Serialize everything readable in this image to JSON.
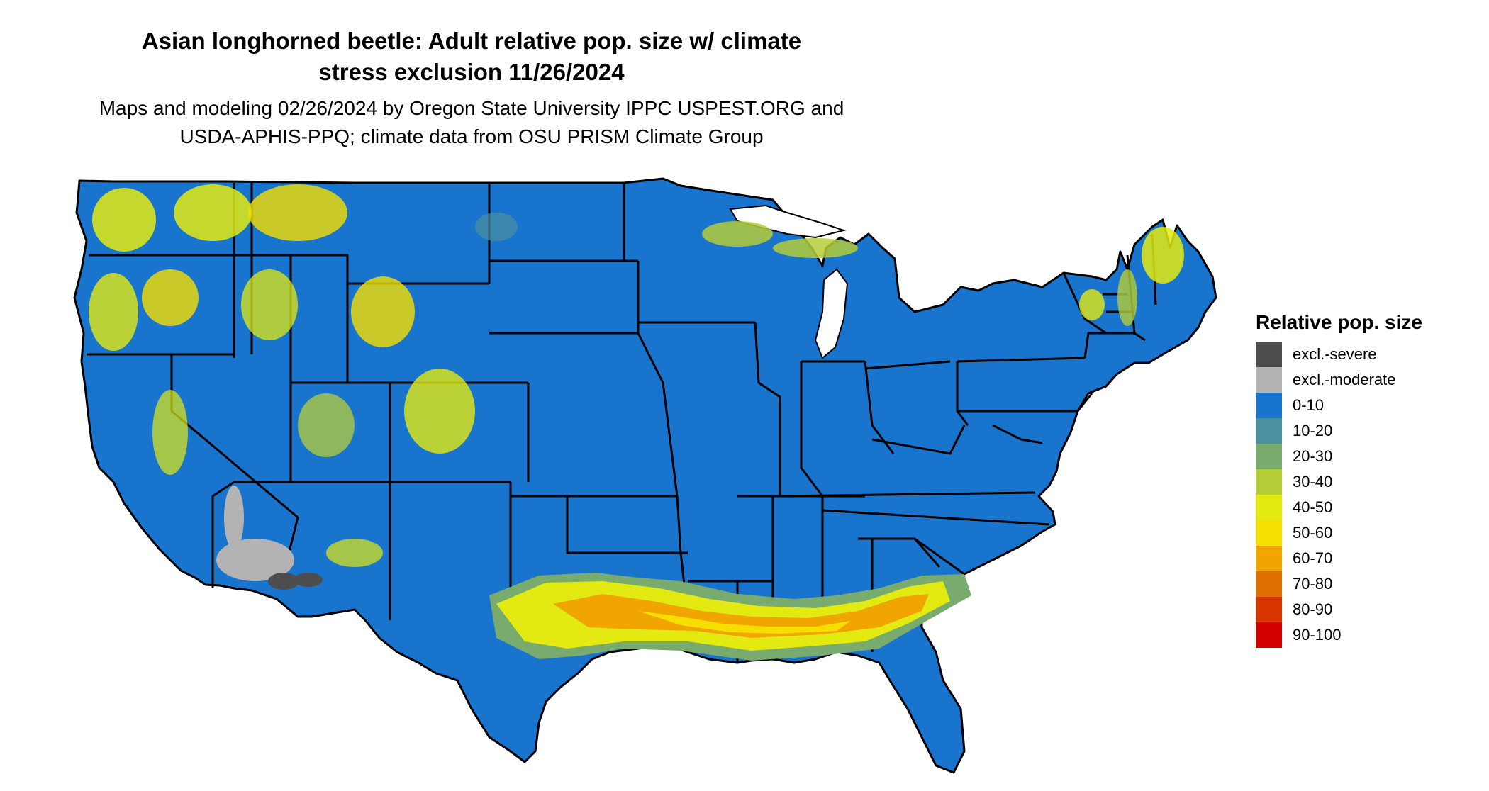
{
  "title_lines": [
    "Asian longhorned beetle: Adult relative pop. size w/ climate",
    "stress exclusion 11/26/2024"
  ],
  "subtitle_lines": [
    "Maps and modeling 02/26/2024 by Oregon State University IPPC USPEST.ORG and",
    "USDA-APHIS-PPQ; climate data from OSU PRISM Climate Group"
  ],
  "legend": {
    "title": "Relative pop. size",
    "items": [
      {
        "label": "excl.-severe",
        "color": "#4d4d4d"
      },
      {
        "label": "excl.-moderate",
        "color": "#b3b3b3"
      },
      {
        "label": "0-10",
        "color": "#1874cd"
      },
      {
        "label": "10-20",
        "color": "#4a90a0"
      },
      {
        "label": "20-30",
        "color": "#7aab6e"
      },
      {
        "label": "30-40",
        "color": "#b5cd38"
      },
      {
        "label": "40-50",
        "color": "#e3ea12"
      },
      {
        "label": "50-60",
        "color": "#f6df00"
      },
      {
        "label": "60-70",
        "color": "#f0a500"
      },
      {
        "label": "70-80",
        "color": "#e07000"
      },
      {
        "label": "80-90",
        "color": "#d83600"
      },
      {
        "label": "90-100",
        "color": "#d40000"
      }
    ]
  },
  "map": {
    "region": "contiguous United States",
    "base_color": "#1874cd",
    "border_color": "#000000"
  }
}
